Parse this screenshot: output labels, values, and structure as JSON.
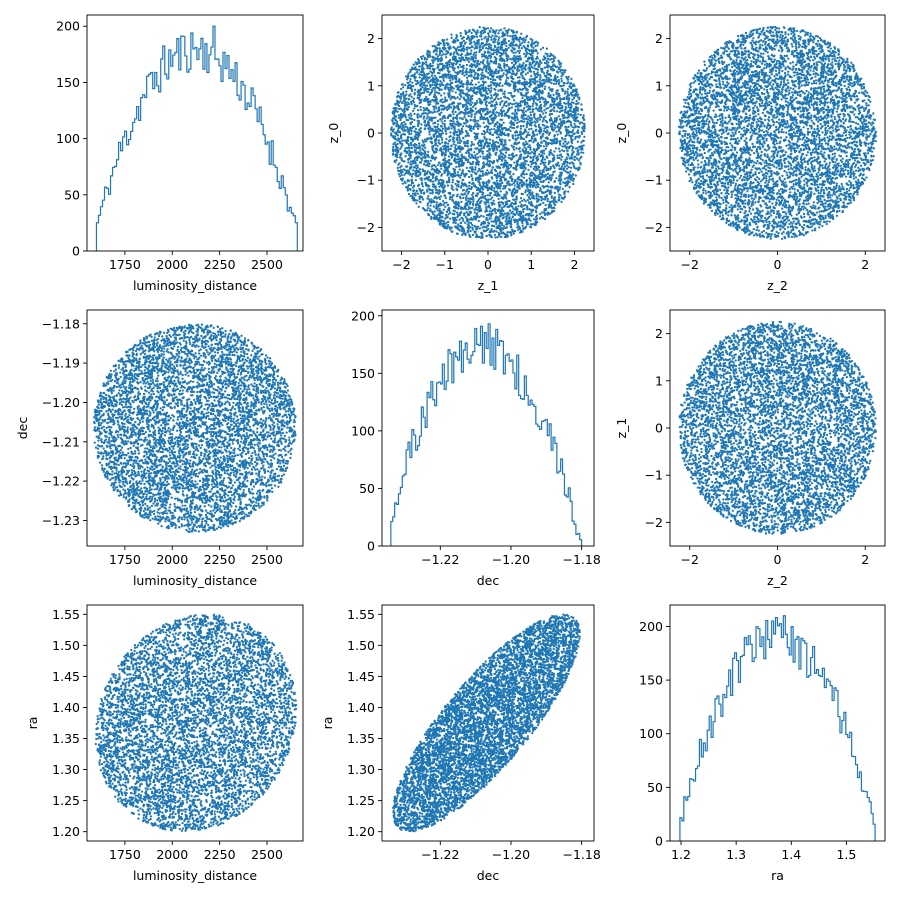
{
  "colors": {
    "series": "#1f77b4",
    "axis": "#000000",
    "background": "#ffffff"
  },
  "chart_data": [
    {
      "type": "histogram",
      "position": "row1-col1",
      "xlabel": "luminosity_distance",
      "ylabel": "",
      "xlim": [
        1550,
        2690
      ],
      "ylim": [
        0,
        210
      ],
      "xticks": [
        1750,
        2000,
        2250,
        2500
      ],
      "xtick_labels": [
        "1750",
        "2000",
        "2250",
        "2500"
      ],
      "yticks": [
        0,
        50,
        100,
        150,
        200
      ],
      "ytick_labels": [
        "0",
        "50",
        "100",
        "150",
        "200"
      ],
      "range": [
        1600,
        2660
      ],
      "peak": 200,
      "dist_params": {
        "center": 2125,
        "half_width": 560,
        "noise": 22,
        "seed": 11
      }
    },
    {
      "type": "scatter",
      "position": "row1-col2",
      "xlabel": "z_1",
      "ylabel": "z_0",
      "xlim": [
        -2.45,
        2.45
      ],
      "ylim": [
        -2.5,
        2.5
      ],
      "xticks": [
        -2,
        -1,
        0,
        1,
        2
      ],
      "xtick_labels": [
        "−2",
        "−1",
        "0",
        "1",
        "2"
      ],
      "yticks": [
        -2,
        -1,
        0,
        1,
        2
      ],
      "ytick_labels": [
        "−2",
        "−1",
        "0",
        "1",
        "2"
      ],
      "dist_params": {
        "shape": "disc",
        "cx": 0,
        "cy": 0,
        "rx": 2.25,
        "ry": 2.25,
        "rho": 0,
        "n": 6000,
        "seed": 21
      }
    },
    {
      "type": "scatter",
      "position": "row1-col3",
      "xlabel": "z_2",
      "ylabel": "z_0",
      "xlim": [
        -2.45,
        2.45
      ],
      "ylim": [
        -2.5,
        2.5
      ],
      "xticks": [
        -2,
        0,
        2
      ],
      "xtick_labels": [
        "−2",
        "0",
        "2"
      ],
      "yticks": [
        -2,
        -1,
        0,
        1,
        2
      ],
      "ytick_labels": [
        "−2",
        "−1",
        "0",
        "1",
        "2"
      ],
      "dist_params": {
        "shape": "disc",
        "cx": 0,
        "cy": 0,
        "rx": 2.25,
        "ry": 2.25,
        "rho": 0,
        "n": 6000,
        "seed": 31
      }
    },
    {
      "type": "scatter",
      "position": "row2-col1",
      "xlabel": "luminosity_distance",
      "ylabel": "dec",
      "xlim": [
        1550,
        2690
      ],
      "ylim": [
        -1.2365,
        -1.1765
      ],
      "xticks": [
        1750,
        2000,
        2250,
        2500
      ],
      "xtick_labels": [
        "1750",
        "2000",
        "2250",
        "2500"
      ],
      "yticks": [
        -1.23,
        -1.22,
        -1.21,
        -1.2,
        -1.19,
        -1.18
      ],
      "ytick_labels": [
        "−1.23",
        "−1.22",
        "−1.21",
        "−1.20",
        "−1.19",
        "−1.18"
      ],
      "dist_params": {
        "shape": "disc",
        "cx": 2120,
        "cy": -1.2065,
        "rx": 535,
        "ry": 0.0265,
        "rho": 0,
        "n": 6000,
        "seed": 41
      }
    },
    {
      "type": "histogram",
      "position": "row2-col2",
      "xlabel": "dec",
      "ylabel": "",
      "xlim": [
        -1.2365,
        -1.1765
      ],
      "ylim": [
        0,
        205
      ],
      "xticks": [
        -1.22,
        -1.2,
        -1.18
      ],
      "xtick_labels": [
        "−1.22",
        "−1.20",
        "−1.18"
      ],
      "yticks": [
        0,
        50,
        100,
        150,
        200
      ],
      "ytick_labels": [
        "0",
        "50",
        "100",
        "150",
        "200"
      ],
      "range": [
        -1.234,
        -1.18
      ],
      "peak": 193,
      "dist_params": {
        "center": -1.208,
        "half_width": 0.028,
        "noise": 22,
        "seed": 51
      }
    },
    {
      "type": "scatter",
      "position": "row2-col3",
      "xlabel": "z_2",
      "ylabel": "z_1",
      "xlim": [
        -2.45,
        2.45
      ],
      "ylim": [
        -2.5,
        2.5
      ],
      "xticks": [
        -2,
        0,
        2
      ],
      "xtick_labels": [
        "−2",
        "0",
        "2"
      ],
      "yticks": [
        -2,
        -1,
        0,
        1,
        2
      ],
      "ytick_labels": [
        "−2",
        "−1",
        "0",
        "1",
        "2"
      ],
      "dist_params": {
        "shape": "disc",
        "cx": 0,
        "cy": 0,
        "rx": 2.25,
        "ry": 2.25,
        "rho": 0,
        "n": 6000,
        "seed": 61
      }
    },
    {
      "type": "scatter",
      "position": "row3-col1",
      "xlabel": "luminosity_distance",
      "ylabel": "ra",
      "xlim": [
        1550,
        2690
      ],
      "ylim": [
        1.185,
        1.565
      ],
      "xticks": [
        1750,
        2000,
        2250,
        2500
      ],
      "xtick_labels": [
        "1750",
        "2000",
        "2250",
        "2500"
      ],
      "yticks": [
        1.2,
        1.25,
        1.3,
        1.35,
        1.4,
        1.45,
        1.5,
        1.55
      ],
      "ytick_labels": [
        "1.20",
        "1.25",
        "1.30",
        "1.35",
        "1.40",
        "1.45",
        "1.50",
        "1.55"
      ],
      "dist_params": {
        "shape": "disc",
        "cx": 2125,
        "cy": 1.375,
        "rx": 530,
        "ry": 0.175,
        "rho": 0.12,
        "n": 6000,
        "seed": 71
      }
    },
    {
      "type": "scatter",
      "position": "row3-col2",
      "xlabel": "dec",
      "ylabel": "ra",
      "xlim": [
        -1.2365,
        -1.1765
      ],
      "ylim": [
        1.185,
        1.565
      ],
      "xticks": [
        -1.22,
        -1.2,
        -1.18
      ],
      "xtick_labels": [
        "−1.22",
        "−1.20",
        "−1.18"
      ],
      "yticks": [
        1.2,
        1.25,
        1.3,
        1.35,
        1.4,
        1.45,
        1.5,
        1.55
      ],
      "ytick_labels": [
        "1.20",
        "1.25",
        "1.30",
        "1.35",
        "1.40",
        "1.45",
        "1.50",
        "1.55"
      ],
      "dist_params": {
        "shape": "disc",
        "cx": -1.207,
        "cy": 1.375,
        "rx": 0.0265,
        "ry": 0.175,
        "rho": 0.82,
        "n": 6000,
        "seed": 81
      }
    },
    {
      "type": "histogram",
      "position": "row3-col3",
      "xlabel": "ra",
      "ylabel": "",
      "xlim": [
        1.18,
        1.57
      ],
      "ylim": [
        0,
        220
      ],
      "xticks": [
        1.2,
        1.3,
        1.4,
        1.5
      ],
      "xtick_labels": [
        "1.2",
        "1.3",
        "1.4",
        "1.5"
      ],
      "yticks": [
        0,
        50,
        100,
        150,
        200
      ],
      "ytick_labels": [
        "0",
        "50",
        "100",
        "150",
        "200"
      ],
      "range": [
        1.198,
        1.552
      ],
      "peak": 210,
      "dist_params": {
        "center": 1.375,
        "half_width": 0.185,
        "noise": 22,
        "seed": 91
      }
    }
  ]
}
